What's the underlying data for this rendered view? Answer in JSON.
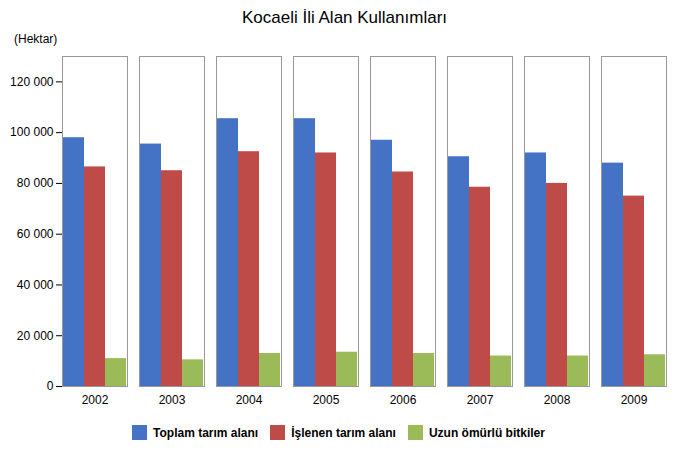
{
  "chart_data": {
    "type": "bar",
    "title": "Kocaeli İli Alan Kullanımları",
    "ylabel": "(Hektar)",
    "categories": [
      "2002",
      "2003",
      "2004",
      "2005",
      "2006",
      "2007",
      "2008",
      "2009"
    ],
    "series": [
      {
        "name": "Toplam tarım alanı",
        "color": "#4472C4",
        "values": [
          98000,
          95500,
          105500,
          105500,
          97000,
          90500,
          92000,
          88000
        ]
      },
      {
        "name": "İşlenen tarım alanı",
        "color": "#BE4B48",
        "values": [
          86500,
          85000,
          92500,
          92000,
          84500,
          78500,
          80000,
          75000
        ]
      },
      {
        "name": "Uzun ömürlü bitkiler",
        "color": "#9BBB59",
        "values": [
          11000,
          10500,
          13000,
          13500,
          13000,
          12000,
          12000,
          12500
        ]
      }
    ],
    "ylim": [
      0,
      130000
    ],
    "yticks": [
      0,
      {
        "value": 20000,
        "label": "20 000"
      },
      {
        "value": 40000,
        "label": "40 000"
      },
      {
        "value": 60000,
        "label": "60 000"
      },
      {
        "value": 80000,
        "label": "80 000"
      },
      {
        "value": 100000,
        "label": "100 000"
      },
      {
        "value": 120000,
        "label": "120 000"
      }
    ],
    "grid": false,
    "legend": "bottom"
  }
}
